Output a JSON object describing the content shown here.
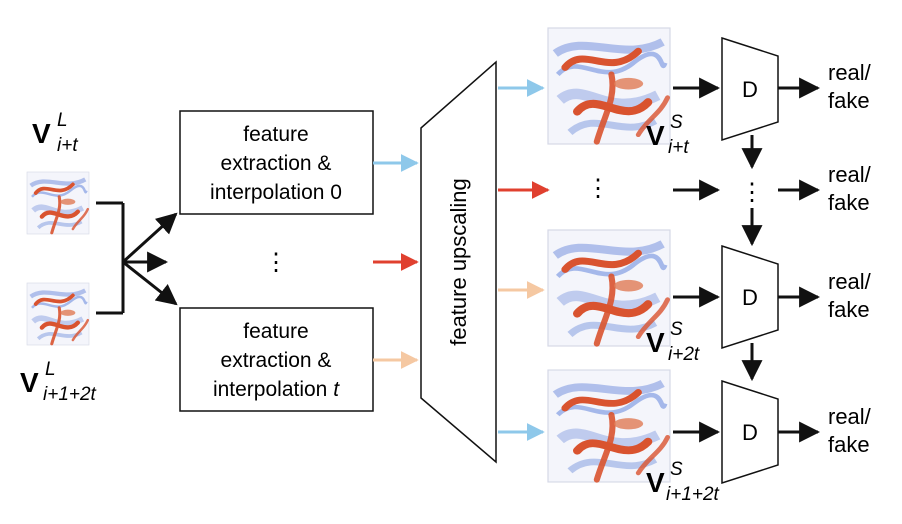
{
  "colors": {
    "arrow_blue": "#8ec8ea",
    "arrow_red": "#e0402f",
    "arrow_peach": "#f5c8a2",
    "line_black": "#111111",
    "vortex_red": "#d9532f",
    "vortex_blue": "#5d7fd6"
  },
  "inputs": {
    "top": {
      "main": "V",
      "sup": "L",
      "sub": "i+t"
    },
    "bottom": {
      "main": "V",
      "sup": "L",
      "sub": "i+1+2t"
    }
  },
  "boxes": {
    "first": {
      "line1": "feature",
      "line2": "extraction &",
      "line3": "interpolation 0"
    },
    "last": {
      "line1": "feature",
      "line2": "extraction &",
      "line3_plain": "interpolation ",
      "line3_italic": "t"
    }
  },
  "ellipsis": "⋮",
  "ellipsis_h": "…",
  "upscaler_label": "feature upscaling",
  "outputs": [
    {
      "main": "V",
      "sup": "S",
      "sub": "i+t"
    },
    {
      "main": "V",
      "sup": "S",
      "sub": "i+2t"
    },
    {
      "main": "V",
      "sup": "S",
      "sub": "i+1+2t"
    }
  ],
  "discriminator_label": "D",
  "result": {
    "line1": "real/",
    "line2": "fake"
  },
  "icons": [
    "volume-render-icon",
    "arrow-icon"
  ]
}
